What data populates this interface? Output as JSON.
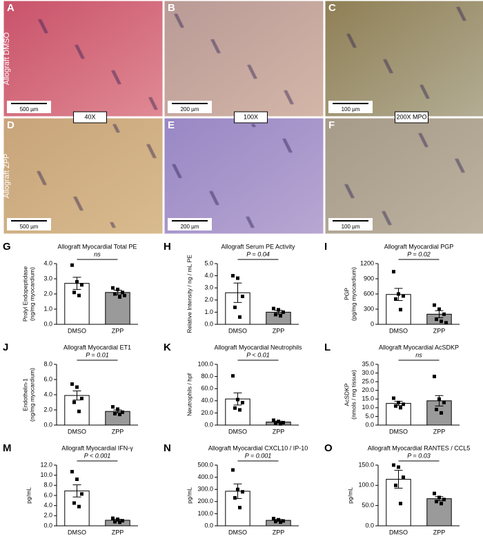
{
  "images": {
    "row_labels": [
      "Allograft DMSO",
      "Allograft ZPP"
    ],
    "magnifications": [
      "40X",
      "100X",
      "200X MPO"
    ],
    "panels": [
      {
        "letter": "A",
        "scale": "500 µm"
      },
      {
        "letter": "B",
        "scale": "200 µm"
      },
      {
        "letter": "C",
        "scale": "100 µm"
      },
      {
        "letter": "D",
        "scale": "500 µm"
      },
      {
        "letter": "E",
        "scale": "200 µm"
      },
      {
        "letter": "F",
        "scale": "100 µm"
      }
    ]
  },
  "chart_data": [
    {
      "type": "bar",
      "panel": "G",
      "title": "Allograft Myocardial Total PE",
      "ylabel": [
        "Prolyl Endopeptidase",
        "(ng/mg myocardium)"
      ],
      "categories": [
        "DMSO",
        "ZPP"
      ],
      "colors": [
        "#ffffff",
        "#9a9a9a"
      ],
      "values": [
        2.7,
        2.1
      ],
      "errors": [
        0.4,
        0.15
      ],
      "points": [
        [
          3.9,
          2.8,
          2.6,
          2.1,
          1.9
        ],
        [
          2.4,
          2.3,
          2.1,
          2.0,
          1.8,
          1.9
        ]
      ],
      "annotation": "ns",
      "ylim": [
        0,
        4
      ],
      "yticks": [
        {
          "value": 0,
          "label": "0.0"
        },
        {
          "value": 1,
          "label": "1.0"
        },
        {
          "value": 2,
          "label": "2.0"
        },
        {
          "value": 3,
          "label": "3.0"
        },
        {
          "value": 4,
          "label": "4.0"
        }
      ]
    },
    {
      "type": "bar",
      "panel": "H",
      "title": "Allograft Serum PE Activity",
      "ylabel": [
        "Relative Intensity / ng / mL PE"
      ],
      "categories": [
        "DMSO",
        "ZPP"
      ],
      "colors": [
        "#ffffff",
        "#9a9a9a"
      ],
      "values": [
        2.6,
        1.0
      ],
      "errors": [
        0.8,
        0.15
      ],
      "points": [
        [
          4.0,
          3.8,
          2.3,
          1.4,
          0.6
        ],
        [
          1.3,
          1.2,
          1.0,
          0.8,
          0.7
        ]
      ],
      "annotation": "P = 0.04",
      "ylim": [
        0,
        5
      ],
      "yticks": [
        {
          "value": 0,
          "label": "0.0"
        },
        {
          "value": 1,
          "label": "1.0"
        },
        {
          "value": 2,
          "label": "2.0"
        },
        {
          "value": 3,
          "label": "3.0"
        },
        {
          "value": 4,
          "label": "4.0"
        },
        {
          "value": 5,
          "label": "5.0"
        }
      ]
    },
    {
      "type": "bar",
      "panel": "I",
      "title": "Allograft Myocardial PGP",
      "ylabel": [
        "PGP",
        "(pg/mg myocardium)"
      ],
      "categories": [
        "DMSO",
        "ZPP"
      ],
      "colors": [
        "#ffffff",
        "#9a9a9a"
      ],
      "values": [
        590,
        200
      ],
      "errors": [
        120,
        70
      ],
      "points": [
        [
          1040,
          600,
          560,
          500,
          290
        ],
        [
          380,
          300,
          200,
          100,
          60,
          30
        ]
      ],
      "annotation": "P = 0.02",
      "ylim": [
        0,
        1200
      ],
      "yticks": [
        0,
        300,
        600,
        900,
        1200
      ]
    },
    {
      "type": "bar",
      "panel": "J",
      "title": "Allograft Myocardial ET1",
      "ylabel": [
        "Endothelin-1",
        "(ng/mg myocardium)"
      ],
      "categories": [
        "DMSO",
        "ZPP"
      ],
      "colors": [
        "#ffffff",
        "#9a9a9a"
      ],
      "values": [
        3.9,
        1.8
      ],
      "errors": [
        0.6,
        0.2
      ],
      "points": [
        [
          5.4,
          5.0,
          3.5,
          3.0,
          1.8
        ],
        [
          2.4,
          2.1,
          1.7,
          1.5,
          1.4
        ]
      ],
      "annotation": "P = 0.01",
      "ylim": [
        0,
        8
      ],
      "yticks": [
        {
          "value": 0,
          "label": "0.0"
        },
        {
          "value": 2,
          "label": "2.0"
        },
        {
          "value": 4,
          "label": "4.0"
        },
        {
          "value": 6,
          "label": "6.0"
        },
        {
          "value": 8,
          "label": "8.0"
        }
      ]
    },
    {
      "type": "bar",
      "panel": "K",
      "title": "Allograft Myocardial Neutrophils",
      "ylabel": [
        "Neutrophils / hpf"
      ],
      "categories": [
        "DMSO",
        "ZPP"
      ],
      "colors": [
        "#ffffff",
        "#9a9a9a"
      ],
      "values": [
        43,
        5
      ],
      "errors": [
        10,
        1.5
      ],
      "points": [
        [
          81,
          42,
          37,
          28,
          25
        ],
        [
          8,
          6,
          4,
          3,
          2
        ]
      ],
      "annotation": "P < 0.01",
      "ylim": [
        0,
        100
      ],
      "yticks": [
        {
          "value": 0,
          "label": "0.0"
        },
        {
          "value": 20,
          "label": "20.0"
        },
        {
          "value": 40,
          "label": "40.0"
        },
        {
          "value": 60,
          "label": "60.0"
        },
        {
          "value": 80,
          "label": "80.0"
        },
        {
          "value": 100,
          "label": "100.0"
        }
      ]
    },
    {
      "type": "bar",
      "panel": "L",
      "title": "Allograft Myocardial AcSDKP",
      "ylabel": [
        "AcSDKP",
        "(nmols / mg tissue)"
      ],
      "categories": [
        "DMSO",
        "ZPP"
      ],
      "colors": [
        "#ffffff",
        "#9a9a9a"
      ],
      "values": [
        12.5,
        14
      ],
      "errors": [
        1.2,
        3
      ],
      "points": [
        [
          15.5,
          13,
          12,
          11,
          10
        ],
        [
          28,
          15,
          13,
          9,
          7
        ]
      ],
      "annotation": "ns",
      "ylim": [
        0,
        35
      ],
      "yticks": [
        {
          "value": 0,
          "label": "0.0"
        },
        {
          "value": 5,
          "label": "5.0"
        },
        {
          "value": 10,
          "label": "10.0"
        },
        {
          "value": 15,
          "label": "15.0"
        },
        {
          "value": 20,
          "label": "20.0"
        },
        {
          "value": 25,
          "label": "25.0"
        },
        {
          "value": 30,
          "label": "30.0"
        },
        {
          "value": 35,
          "label": "35.0"
        }
      ]
    },
    {
      "type": "bar",
      "panel": "M",
      "title": "Allograft Myocardial IFN-γ",
      "ylabel": [
        "pg/mL"
      ],
      "categories": [
        "DMSO",
        "ZPP"
      ],
      "colors": [
        "#ffffff",
        "#9a9a9a"
      ],
      "values": [
        6.9,
        1.1
      ],
      "errors": [
        1.2,
        0.2
      ],
      "points": [
        [
          10.7,
          9.2,
          6.3,
          4.5,
          3.8
        ],
        [
          1.5,
          1.3,
          1.0,
          0.8,
          0.7
        ]
      ],
      "annotation": "P < 0.001",
      "ylim": [
        0,
        12
      ],
      "yticks": [
        {
          "value": 0,
          "label": "0.0"
        },
        {
          "value": 2,
          "label": "2.0"
        },
        {
          "value": 4,
          "label": "4.0"
        },
        {
          "value": 6,
          "label": "6.0"
        },
        {
          "value": 8,
          "label": "8.0"
        },
        {
          "value": 10,
          "label": "10.0"
        },
        {
          "value": 12,
          "label": "12.0"
        }
      ]
    },
    {
      "type": "bar",
      "panel": "N",
      "title": "Allograft Myocardial CXCL10 / IP-10",
      "ylabel": [
        "pg/mL"
      ],
      "categories": [
        "DMSO",
        "ZPP"
      ],
      "colors": [
        "#ffffff",
        "#9a9a9a"
      ],
      "values": [
        285,
        45
      ],
      "errors": [
        60,
        8
      ],
      "points": [
        [
          460,
          300,
          280,
          230,
          150
        ],
        [
          60,
          50,
          40,
          35,
          30
        ]
      ],
      "annotation": "P = 0.001",
      "ylim": [
        0,
        500
      ],
      "yticks": [
        {
          "value": 0,
          "label": "0.0"
        },
        {
          "value": 100,
          "label": "100.0"
        },
        {
          "value": 200,
          "label": "200.0"
        },
        {
          "value": 300,
          "label": "300.0"
        },
        {
          "value": 400,
          "label": "400.0"
        },
        {
          "value": 500,
          "label": "500.0"
        }
      ]
    },
    {
      "type": "bar",
      "panel": "O",
      "title": "Allograft Myocardial RANTES / CCL5",
      "ylabel": [
        "pg/mL"
      ],
      "categories": [
        "DMSO",
        "ZPP"
      ],
      "colors": [
        "#ffffff",
        "#9a9a9a"
      ],
      "values": [
        115,
        67
      ],
      "errors": [
        22,
        5
      ],
      "points": [
        [
          150,
          145,
          120,
          100,
          55
        ],
        [
          80,
          70,
          65,
          60,
          55
        ]
      ],
      "annotation": "P = 0.03",
      "ylim": [
        0,
        150
      ],
      "yticks": [
        {
          "value": 0,
          "label": "0.0"
        },
        {
          "value": 50,
          "label": "50.0"
        },
        {
          "value": 100,
          "label": "100.0"
        },
        {
          "value": 150,
          "label": "150.0"
        }
      ]
    }
  ]
}
